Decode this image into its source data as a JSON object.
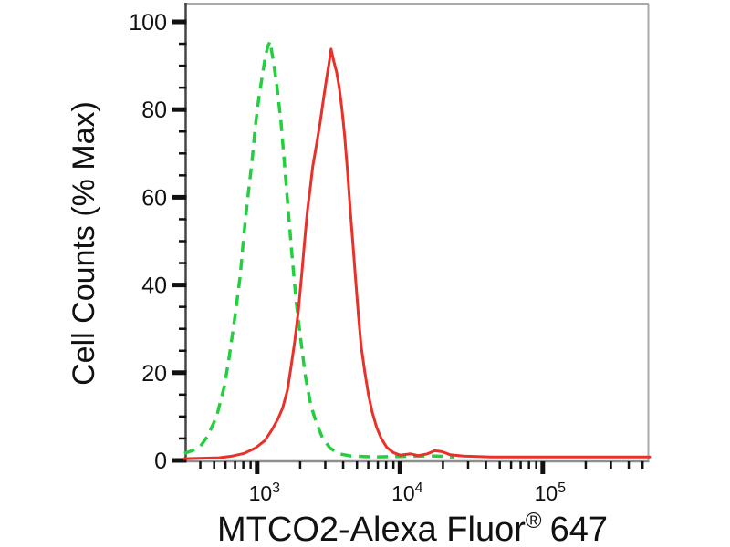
{
  "colors": {
    "green": "#24cf3f",
    "red": "#e93129",
    "axis_dark": "#454545",
    "axis_light": "#8f8f8f",
    "border": "#ababab",
    "tick": "#111111",
    "text": "#111111",
    "background": "#ffffff"
  },
  "chart_data": {
    "type": "line",
    "subtype": "flow-cytometry-histogram",
    "title": "",
    "ylabel": "Cell Counts (% Max)",
    "xlabel_main": "MTCO2-Alexa Fluor",
    "xlabel_sup": "®",
    "xlabel_suffix": "647",
    "x_scale": "log",
    "grid": false,
    "legend": null,
    "x_axis": {
      "log_min": 2.49,
      "log_max": 5.748,
      "major_ticks": [
        {
          "value": 1000,
          "base": "10",
          "exp": "3"
        },
        {
          "value": 10000,
          "base": "10",
          "exp": "4"
        },
        {
          "value": 100000,
          "base": "10",
          "exp": "5"
        }
      ],
      "minor_decades": [
        2,
        3,
        4,
        5
      ]
    },
    "y_axis": {
      "min": 0,
      "max": 100,
      "major_ticks": [
        0,
        20,
        40,
        60,
        80,
        100
      ],
      "minor_step": 5
    },
    "series": [
      {
        "name": "green-dashed-control",
        "color": "#24cf3f",
        "style": "dashed",
        "width": 3.5,
        "peak_x": 1230,
        "peak_y": 95.5,
        "points": [
          [
            308,
            1.6
          ],
          [
            350,
            2.2
          ],
          [
            400,
            3.2
          ],
          [
            450,
            5.5
          ],
          [
            520,
            10
          ],
          [
            590,
            17
          ],
          [
            640,
            24
          ],
          [
            700,
            33
          ],
          [
            760,
            42
          ],
          [
            810,
            52
          ],
          [
            860,
            60
          ],
          [
            920,
            68
          ],
          [
            970,
            76
          ],
          [
            1030,
            83
          ],
          [
            1090,
            88
          ],
          [
            1140,
            92
          ],
          [
            1190,
            94.5
          ],
          [
            1230,
            95.5
          ],
          [
            1300,
            91
          ],
          [
            1380,
            85
          ],
          [
            1470,
            77
          ],
          [
            1560,
            67
          ],
          [
            1650,
            57
          ],
          [
            1750,
            47
          ],
          [
            1880,
            36
          ],
          [
            2030,
            27
          ],
          [
            2180,
            19
          ],
          [
            2380,
            12.5
          ],
          [
            2600,
            8.5
          ],
          [
            2880,
            5
          ],
          [
            3240,
            2.8
          ],
          [
            3760,
            1.5
          ],
          [
            4550,
            1
          ],
          [
            6600,
            0.8
          ],
          [
            10000,
            0.9
          ],
          [
            13400,
            1
          ],
          [
            18000,
            1
          ],
          [
            24000,
            0.8
          ]
        ]
      },
      {
        "name": "red-solid-stained",
        "color": "#e93129",
        "style": "solid",
        "width": 3,
        "peak_x": 3290,
        "peak_y": 93.8,
        "points": [
          [
            308,
            0.4
          ],
          [
            540,
            0.6
          ],
          [
            670,
            1
          ],
          [
            810,
            1.6
          ],
          [
            970,
            2.8
          ],
          [
            1130,
            4.5
          ],
          [
            1270,
            7
          ],
          [
            1400,
            9.5
          ],
          [
            1510,
            12
          ],
          [
            1630,
            16
          ],
          [
            1720,
            21
          ],
          [
            1830,
            27
          ],
          [
            1940,
            34
          ],
          [
            2060,
            43
          ],
          [
            2150,
            50
          ],
          [
            2250,
            57
          ],
          [
            2350,
            62
          ],
          [
            2450,
            67
          ],
          [
            2600,
            72
          ],
          [
            2760,
            77
          ],
          [
            2930,
            83
          ],
          [
            3060,
            87
          ],
          [
            3200,
            91
          ],
          [
            3290,
            93.8
          ],
          [
            3440,
            91
          ],
          [
            3600,
            88.5
          ],
          [
            3760,
            85
          ],
          [
            3930,
            80
          ],
          [
            4100,
            74
          ],
          [
            4290,
            66
          ],
          [
            4490,
            57
          ],
          [
            4690,
            49
          ],
          [
            4900,
            41
          ],
          [
            5120,
            33
          ],
          [
            5350,
            26
          ],
          [
            5680,
            20
          ],
          [
            6020,
            15
          ],
          [
            6390,
            11
          ],
          [
            6870,
            7.5
          ],
          [
            7400,
            5
          ],
          [
            8080,
            3
          ],
          [
            8960,
            1.8
          ],
          [
            10000,
            1.2
          ],
          [
            11900,
            1.5
          ],
          [
            13400,
            1.1
          ],
          [
            15600,
            1.5
          ],
          [
            17500,
            2.2
          ],
          [
            19700,
            2.0
          ],
          [
            22400,
            1.3
          ],
          [
            28000,
            1.0
          ],
          [
            43600,
            0.8
          ],
          [
            100000,
            0.8
          ],
          [
            224000,
            0.8
          ],
          [
            560000,
            0.8
          ]
        ]
      }
    ]
  }
}
